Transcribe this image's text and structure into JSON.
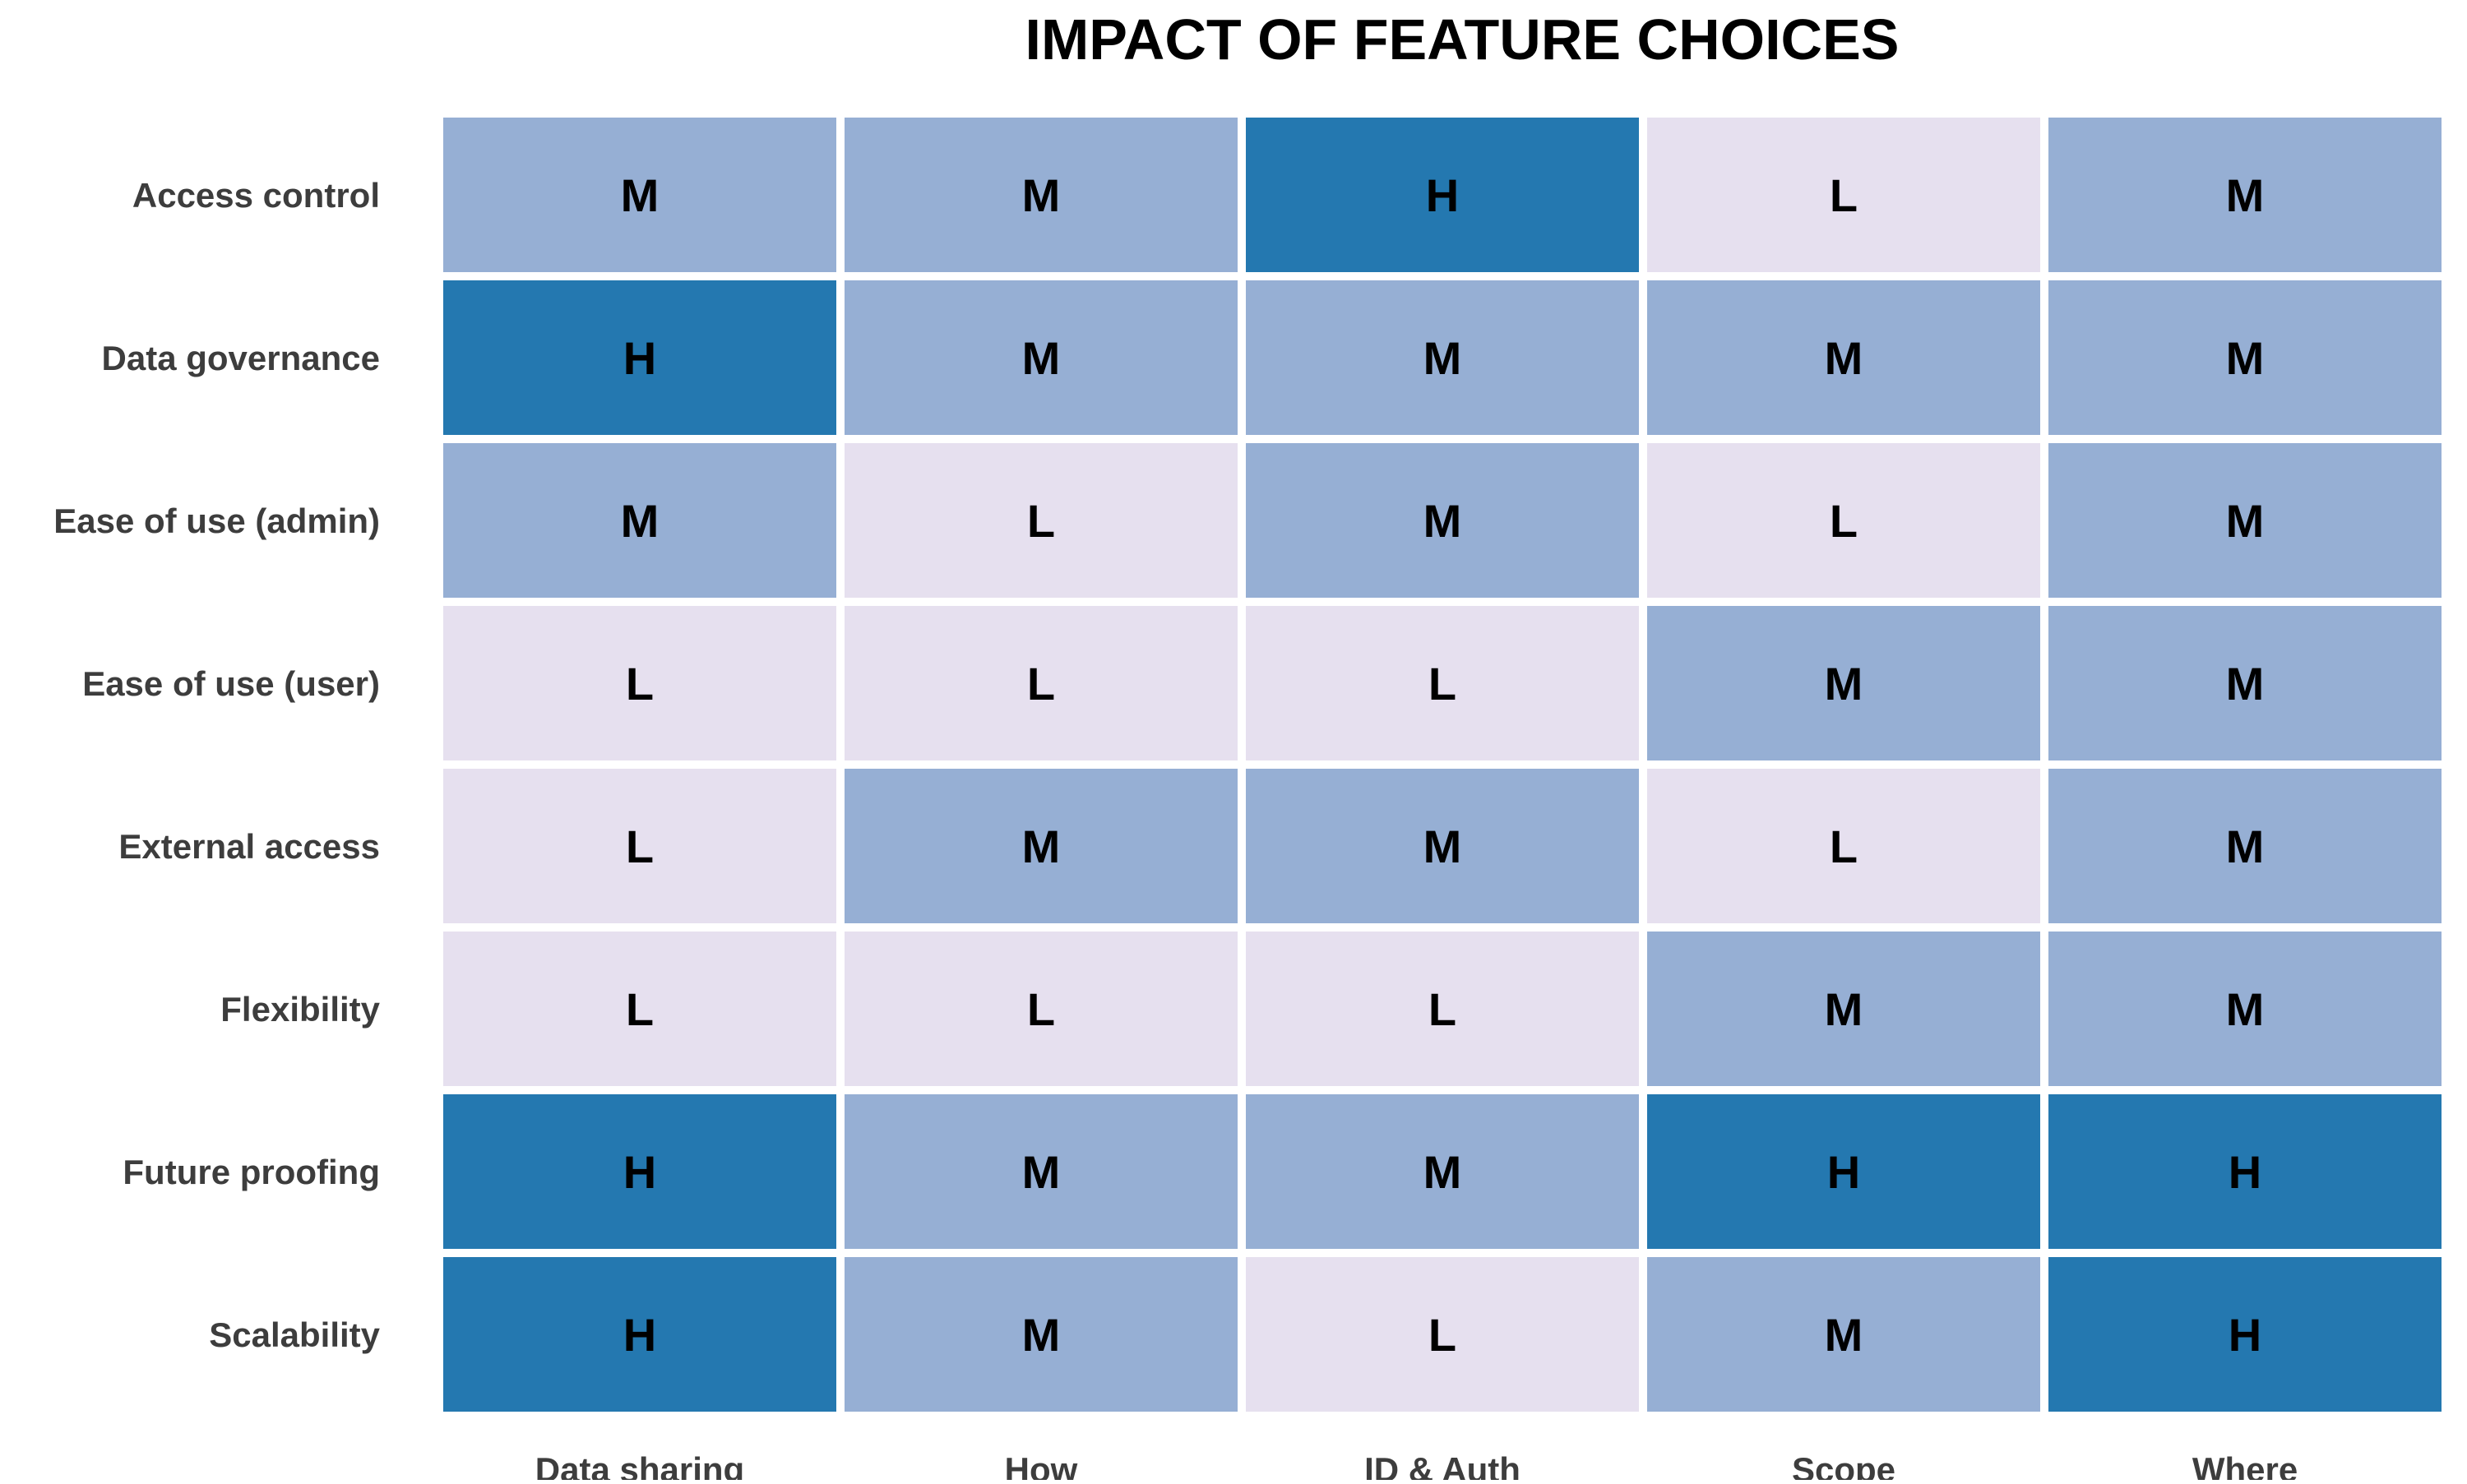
{
  "chart_data": {
    "type": "heatmap",
    "title": "IMPACT OF FEATURE CHOICES",
    "columns": [
      "Data sharing",
      "How",
      "ID & Auth",
      "Scope",
      "Where"
    ],
    "rows": [
      "Access control",
      "Data governance",
      "Ease of use (admin)",
      "Ease of use (user)",
      "External access",
      "Flexibility",
      "Future proofing",
      "Scalability"
    ],
    "cells": [
      [
        "M",
        "M",
        "H",
        "L",
        "M"
      ],
      [
        "H",
        "M",
        "M",
        "M",
        "M"
      ],
      [
        "M",
        "L",
        "M",
        "L",
        "M"
      ],
      [
        "L",
        "L",
        "L",
        "M",
        "M"
      ],
      [
        "L",
        "M",
        "M",
        "L",
        "M"
      ],
      [
        "L",
        "L",
        "L",
        "M",
        "M"
      ],
      [
        "H",
        "M",
        "M",
        "H",
        "H"
      ],
      [
        "H",
        "M",
        "L",
        "M",
        "H"
      ]
    ],
    "color_scale": {
      "L": "#e6e0ef",
      "M": "#96afd4",
      "H": "#2478b0"
    },
    "grid": false,
    "legend": "none"
  },
  "colors": {
    "title": "#000000",
    "axis_label": "#3d3d3d",
    "cell_text": "#000000",
    "cell_border": "#ffffff"
  }
}
